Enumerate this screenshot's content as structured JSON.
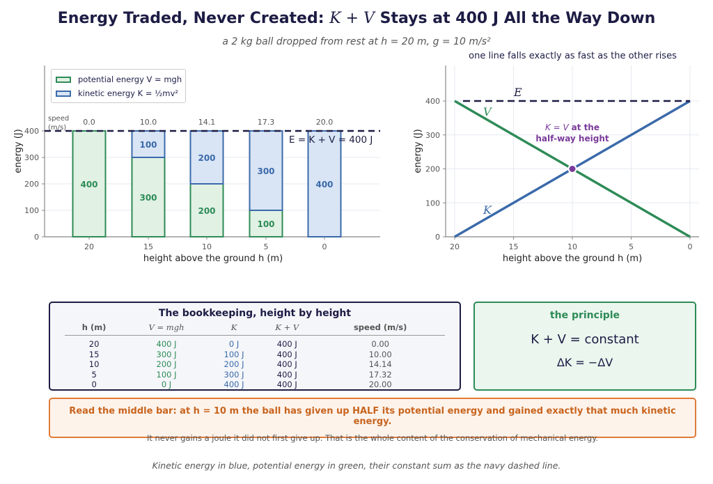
{
  "header": {
    "title_text": "Energy Traded, Never Created:",
    "title_math": "K + V",
    "title_rest": "Stays at 400 J All the Way Down",
    "subtitle": "a 2 kg ball dropped from rest at h = 20 m,  g = 10 m/s²"
  },
  "chart_data": [
    {
      "type": "bar",
      "stacked": true,
      "categories": [
        "20",
        "15",
        "10",
        "5",
        "0"
      ],
      "series": [
        {
          "name": "potential energy V = mgh",
          "values": [
            400,
            300,
            200,
            100,
            0
          ],
          "color": "#2e8b57",
          "fill": "#e1f1e4"
        },
        {
          "name": "kinetic energy K = ½mv²",
          "values": [
            0,
            100,
            200,
            300,
            400
          ],
          "color": "#3b6aaa",
          "fill": "#d9e5f5"
        }
      ],
      "speed_header": "speed\n(m/s)",
      "speeds": [
        "0.0",
        "10.0",
        "14.1",
        "17.3",
        "20.0"
      ],
      "total": 400,
      "total_label": "E = K + V = 400 J",
      "xlabel": "height above the ground  h  (m)",
      "ylabel": "energy  (J)",
      "ylim": [
        0,
        400
      ],
      "yticks": [
        0,
        100,
        200,
        300,
        400
      ],
      "legend": [
        {
          "text": "potential energy V = mgh",
          "color": "#2e8b57",
          "fill": "#e1f1e4"
        },
        {
          "text": "kinetic energy K = ½mv²",
          "color": "#3b6aaa",
          "fill": "#d9e5f5"
        }
      ],
      "legend_position": "top-left"
    },
    {
      "type": "line",
      "title": "one line falls exactly as fast as the other rises",
      "x": [
        20,
        15,
        10,
        5,
        0
      ],
      "xticks": [
        "20",
        "15",
        "10",
        "5",
        "0"
      ],
      "series": [
        {
          "name": "V",
          "values": [
            400,
            300,
            200,
            100,
            0
          ],
          "color": "#2e8b57"
        },
        {
          "name": "K",
          "values": [
            0,
            100,
            200,
            300,
            400
          ],
          "color": "#3b6aaa"
        },
        {
          "name": "E",
          "values": [
            400,
            400,
            400,
            400,
            400
          ],
          "color": "#1c1c44",
          "dashed": true
        }
      ],
      "crossing": {
        "x": 10,
        "y": 200,
        "label_math": "K = V",
        "label_text": "at the",
        "label_line2": "half-way height",
        "color": "#7a3b9a"
      },
      "xlabel": "height above the ground  h  (m)",
      "ylabel": "energy  (J)",
      "xlim": [
        20,
        0
      ],
      "ylim": [
        0,
        400
      ],
      "yticks": [
        0,
        100,
        200,
        300,
        400
      ],
      "grid": true
    }
  ],
  "table": {
    "title": "The bookkeeping, height by height",
    "headers": [
      "h (m)",
      "V = mgh",
      "K",
      "K + V",
      "speed (m/s)"
    ],
    "rows": [
      [
        "20",
        "400 J",
        "0 J",
        "400 J",
        "0.00"
      ],
      [
        "15",
        "300 J",
        "100 J",
        "400 J",
        "10.00"
      ],
      [
        "10",
        "200 J",
        "200 J",
        "400 J",
        "14.14"
      ],
      [
        "5",
        "100 J",
        "300 J",
        "400 J",
        "17.32"
      ],
      [
        "0",
        "0 J",
        "400 J",
        "400 J",
        "20.00"
      ]
    ],
    "column_colors": [
      "#1c1c44",
      "#2e8b57",
      "#3b6aaa",
      "#1c1c44",
      "#555555"
    ]
  },
  "principle": {
    "title": "the principle",
    "eq1": "K + V = constant",
    "eq2": "ΔK = −ΔV"
  },
  "note": {
    "bold": "Read the middle bar: at h = 10 m the ball has given up HALF its potential energy and gained exactly that much kinetic energy.",
    "sub": "It never gains a joule it did not first give up. That is the whole content of the conservation of mechanical energy."
  },
  "caption": "Kinetic energy in blue, potential energy in green, their constant sum as the navy dashed line."
}
